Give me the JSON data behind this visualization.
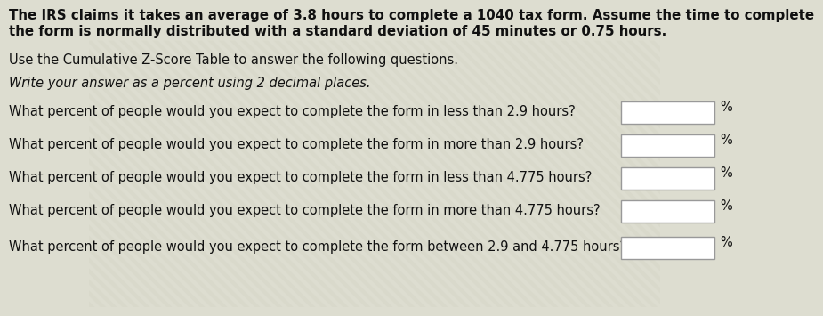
{
  "background_color": "#ddddd0",
  "stripe_color1": "#d8d8c8",
  "stripe_color2": "#e2e2d2",
  "title_line1": "The IRS claims it takes an average of 3.8 hours to complete a 1040 tax form. Assume the time to complete",
  "title_line2": "the form is normally distributed with a standard deviation of 45 minutes or 0.75 hours.",
  "subtitle1": "Use the Cumulative Z-Score Table to answer the following questions.",
  "subtitle2": "Write your answer as a percent using 2 decimal places.",
  "questions": [
    "What percent of people would you expect to complete the form in less than 2.9 hours?",
    "What percent of people would you expect to complete the form in more than 2.9 hours?",
    "What percent of people would you expect to complete the form in less than 4.775 hours?",
    "What percent of people would you expect to complete the form in more than 4.775 hours?",
    "What percent of people would you expect to complete the form between 2.9 and 4.775 hours?"
  ],
  "percent_symbol": "%",
  "box_color": "#ffffff",
  "box_edge_color": "#999999",
  "text_color": "#111111",
  "title_fontsize": 10.8,
  "body_fontsize": 10.5,
  "italic_fontsize": 10.5
}
